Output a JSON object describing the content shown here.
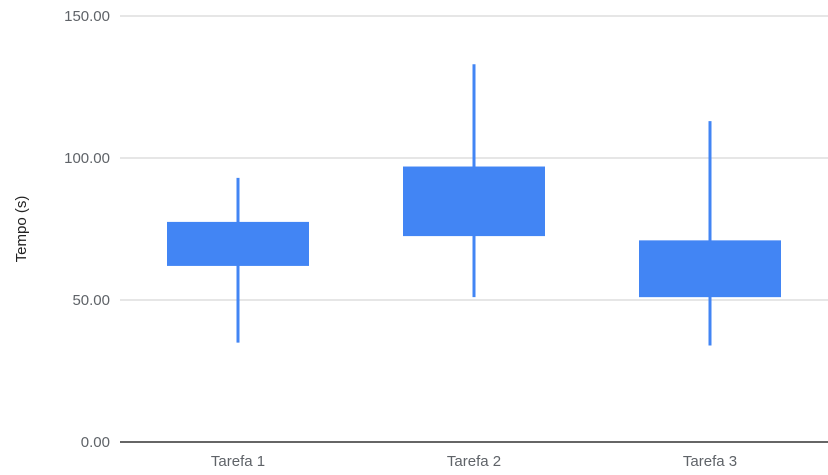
{
  "colors": {
    "box": "#4285f4",
    "grid": "#cccccc",
    "baseline": "#333333",
    "tick_text": "#5f6368",
    "axis_title": "#222222"
  },
  "chart_data": {
    "type": "candlestick",
    "title": "",
    "xlabel": "",
    "ylabel": "Tempo (s)",
    "ylim": [
      0,
      150
    ],
    "yticks": [
      0,
      50,
      100,
      150
    ],
    "ytick_labels": [
      "0.00",
      "50.00",
      "100.00",
      "150.00"
    ],
    "grid": true,
    "categories": [
      "Tarefa 1",
      "Tarefa 2",
      "Tarefa 3"
    ],
    "candles": [
      {
        "category": "Tarefa 1",
        "low": 35,
        "box_low": 62,
        "box_high": 77.5,
        "high": 93
      },
      {
        "category": "Tarefa 2",
        "low": 51,
        "box_low": 72.5,
        "box_high": 97,
        "high": 133
      },
      {
        "category": "Tarefa 3",
        "low": 34,
        "box_low": 51,
        "box_high": 71,
        "high": 113
      }
    ]
  }
}
